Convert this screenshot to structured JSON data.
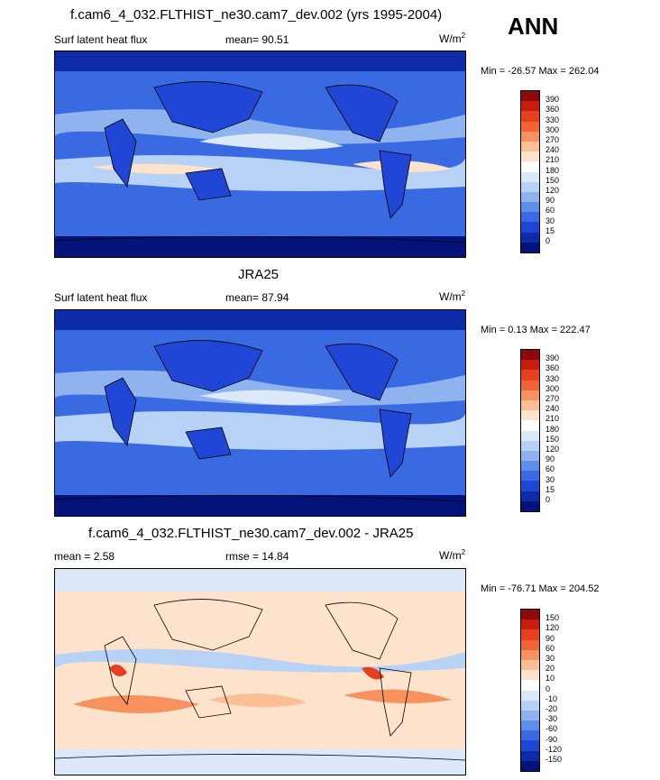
{
  "season": "ANN",
  "units_html": "W/m",
  "units_sup": "2",
  "panels": [
    {
      "title": "f.cam6_4_032.FLTHIST_ne30.cam7_dev.002 (yrs 1995-2004)",
      "variable": "Surf latent heat flux",
      "stat1": "mean=  90.51",
      "stat2": "",
      "minmax": "Min = -26.57 Max = 262.04",
      "levels": [
        "390",
        "360",
        "330",
        "300",
        "270",
        "240",
        "210",
        "180",
        "150",
        "120",
        "90",
        "60",
        "30",
        "15",
        "0"
      ],
      "colors": [
        "#8c0a0a",
        "#c81e12",
        "#e6401e",
        "#f26436",
        "#f7925e",
        "#fbbf95",
        "#fde3cc",
        "#ffffff",
        "#dce9fb",
        "#b8d2f6",
        "#8fb3ef",
        "#5f8ee8",
        "#3a6ae2",
        "#2046d6",
        "#0e2ba8",
        "#03137a"
      ]
    },
    {
      "title": "JRA25",
      "variable": "Surf latent heat flux",
      "stat1": "mean=  87.94",
      "stat2": "",
      "minmax": "Min =   0.13 Max = 222.47",
      "levels": [
        "390",
        "360",
        "330",
        "300",
        "270",
        "240",
        "210",
        "180",
        "150",
        "120",
        "90",
        "60",
        "30",
        "15",
        "0"
      ],
      "colors": [
        "#8c0a0a",
        "#c81e12",
        "#e6401e",
        "#f26436",
        "#f7925e",
        "#fbbf95",
        "#fde3cc",
        "#ffffff",
        "#dce9fb",
        "#b8d2f6",
        "#8fb3ef",
        "#5f8ee8",
        "#3a6ae2",
        "#2046d6",
        "#0e2ba8",
        "#03137a"
      ]
    },
    {
      "title": "f.cam6_4_032.FLTHIST_ne30.cam7_dev.002 - JRA25",
      "variable": "mean =   2.58",
      "stat1": "rmse =  14.84",
      "stat2": "",
      "minmax": "Min = -76.71 Max = 204.52",
      "levels": [
        "150",
        "120",
        "90",
        "60",
        "30",
        "20",
        "10",
        "0",
        "-10",
        "-20",
        "-30",
        "-60",
        "-90",
        "-120",
        "-150"
      ],
      "colors": [
        "#8c0a0a",
        "#c81e12",
        "#e6401e",
        "#f26436",
        "#f7925e",
        "#fbbf95",
        "#fde3cc",
        "#ffffff",
        "#dce9fb",
        "#b8d2f6",
        "#8fb3ef",
        "#5f8ee8",
        "#3a6ae2",
        "#2046d6",
        "#0e2ba8",
        "#03137a"
      ]
    }
  ]
}
